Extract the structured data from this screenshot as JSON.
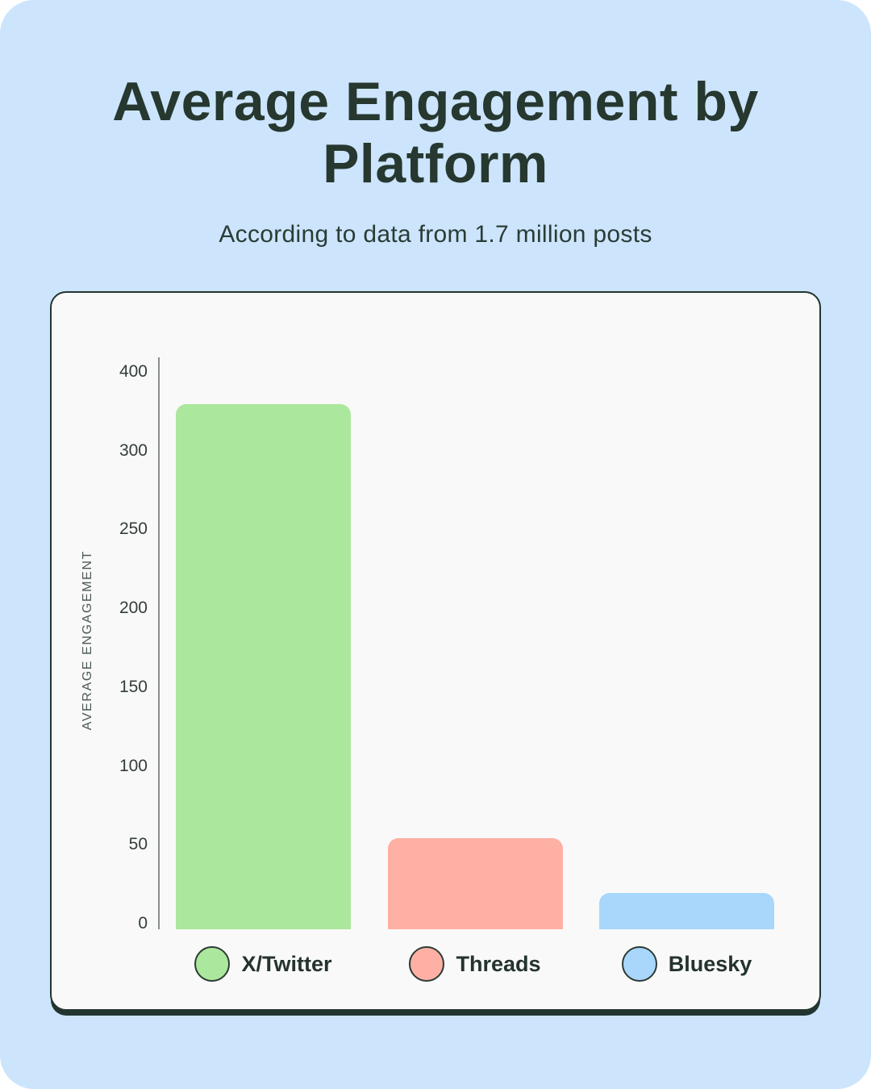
{
  "page": {
    "background_color": "#cce5fc",
    "card_background": "#f9f9f9",
    "card_border_color": "#243530"
  },
  "header": {
    "title": "Average Engagement by Platform",
    "subtitle": "According to data from 1.7 million posts"
  },
  "chart_data": {
    "type": "bar",
    "title": "Average Engagement by Platform",
    "subtitle": "According to data from 1.7 million posts",
    "xlabel": "",
    "ylabel": "AVERAGE ENGAGEMENT",
    "categories": [
      "X/Twitter",
      "Threads",
      "Bluesky"
    ],
    "values": [
      360,
      55,
      20
    ],
    "bar_colors": [
      "#abe79c",
      "#ffb0a5",
      "#a9d7fb"
    ],
    "ytick_labels": [
      "400",
      "300",
      "250",
      "200",
      "150",
      "100",
      "50",
      "0"
    ],
    "ylim": [
      0,
      400
    ],
    "grid": false,
    "axis_note": "y ticks are equally spaced; interval 400-300 spans one step like the 50-unit steps below it",
    "legend_position": "bottom",
    "legend": [
      {
        "label": "X/Twitter",
        "color": "#abe79c"
      },
      {
        "label": "Threads",
        "color": "#ffb0a5"
      },
      {
        "label": "Bluesky",
        "color": "#a9d7fb"
      }
    ],
    "axis_color": "#8b8d8b",
    "tick_text_color": "#333e39",
    "ylabel_color": "#4d5a54"
  }
}
